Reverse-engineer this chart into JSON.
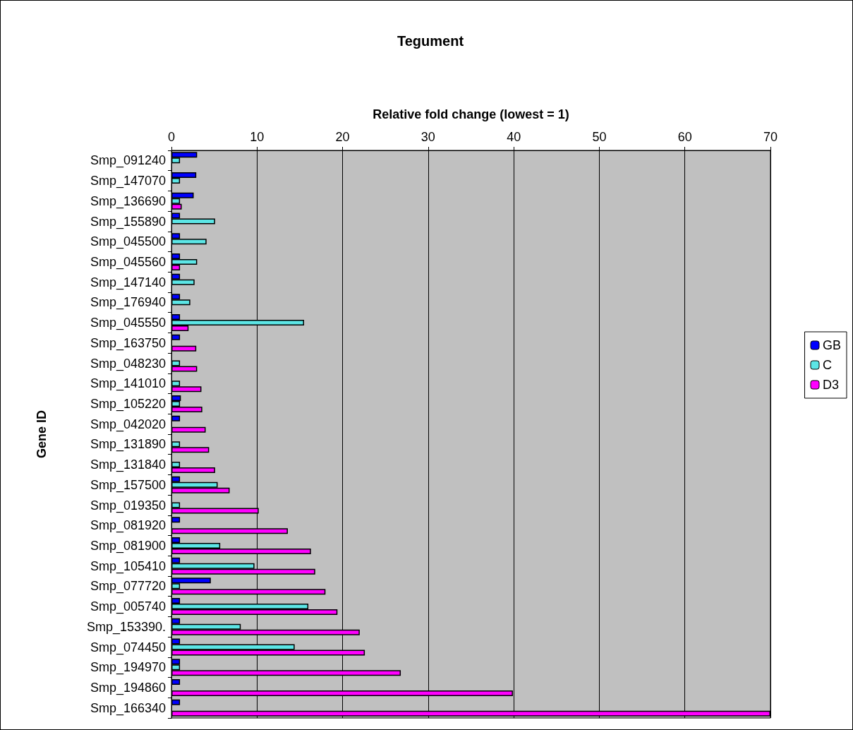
{
  "chart_data": {
    "type": "bar",
    "orientation": "horizontal",
    "title": "Tegument",
    "xlabel": "Relative fold change (lowest = 1)",
    "ylabel": "Gene ID",
    "categories": [
      "Smp_091240",
      "Smp_147070",
      "Smp_136690",
      "Smp_155890",
      "Smp_045500",
      "Smp_045560",
      "Smp_147140",
      "Smp_176940",
      "Smp_045550",
      "Smp_163750",
      "Smp_048230",
      "Smp_141010",
      "Smp_105220",
      "Smp_042020",
      "Smp_131890",
      "Smp_131840",
      "Smp_157500",
      "Smp_019350",
      "Smp_081920",
      "Smp_081900",
      "Smp_105410",
      "Smp_077720",
      "Smp_005740",
      "Smp_153390.",
      "Smp_074450",
      "Smp_194970",
      "Smp_194860",
      "Smp_166340"
    ],
    "series": [
      {
        "name": "GB",
        "color": "#0000ff",
        "values": [
          3,
          2.9,
          2.6,
          1,
          1,
          1,
          1,
          1,
          1,
          1,
          null,
          null,
          1.1,
          1,
          null,
          null,
          1,
          null,
          1,
          1,
          1,
          4.6,
          1,
          1,
          1,
          1,
          1,
          1
        ]
      },
      {
        "name": "C",
        "color": "#5ce6e6",
        "values": [
          1,
          1,
          1,
          5.1,
          4.1,
          3,
          2.7,
          2.2,
          15.5,
          null,
          1,
          1,
          1,
          null,
          1,
          1,
          5.4,
          1,
          null,
          5.7,
          9.7,
          1,
          16,
          8.1,
          14.4,
          1,
          null,
          null
        ]
      },
      {
        "name": "D3",
        "color": "#ff00ff",
        "values": [
          null,
          null,
          1.2,
          null,
          null,
          1,
          null,
          null,
          2,
          2.9,
          3,
          3.5,
          3.6,
          4,
          4.4,
          5.1,
          6.8,
          10.2,
          13.6,
          16.3,
          16.8,
          18,
          19.4,
          22,
          22.6,
          26.8,
          39.9,
          70
        ]
      }
    ],
    "xlim": [
      0,
      70
    ],
    "xticks": [
      0,
      10,
      20,
      30,
      40,
      50,
      60,
      70
    ],
    "grid": "x",
    "legend": "right"
  }
}
